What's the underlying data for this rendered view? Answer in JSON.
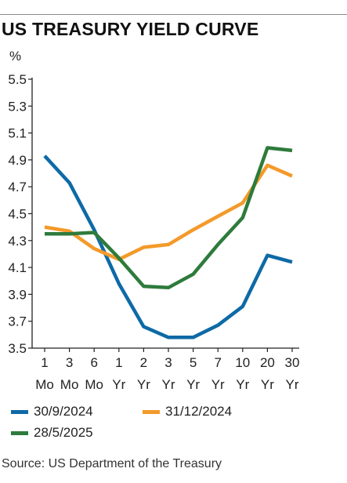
{
  "header": {
    "title": "US TREASURY YIELD CURVE",
    "unit": "%"
  },
  "chart_data": {
    "type": "line",
    "title": "US TREASURY YIELD CURVE",
    "ylabel": "%",
    "xlabel": "",
    "ylim": [
      3.5,
      5.5
    ],
    "yticks": [
      "5.5",
      "5.3",
      "5.1",
      "4.9",
      "4.7",
      "4.5",
      "4.3",
      "4.1",
      "3.9",
      "3.7",
      "3.5"
    ],
    "categories": [
      {
        "top": "1",
        "bottom": "Mo"
      },
      {
        "top": "3",
        "bottom": "Mo"
      },
      {
        "top": "6",
        "bottom": "Mo"
      },
      {
        "top": "1",
        "bottom": "Yr"
      },
      {
        "top": "2",
        "bottom": "Yr"
      },
      {
        "top": "3",
        "bottom": "Yr"
      },
      {
        "top": "5",
        "bottom": "Yr"
      },
      {
        "top": "7",
        "bottom": "Yr"
      },
      {
        "top": "10",
        "bottom": "Yr"
      },
      {
        "top": "20",
        "bottom": "Yr"
      },
      {
        "top": "30",
        "bottom": "Yr"
      }
    ],
    "grid": false,
    "legend_position": "bottom",
    "series": [
      {
        "name": "30/9/2024",
        "color": "#0e6aa6",
        "values": [
          4.93,
          4.73,
          4.38,
          3.98,
          3.66,
          3.58,
          3.58,
          3.67,
          3.81,
          4.19,
          4.14
        ]
      },
      {
        "name": "31/12/2024",
        "color": "#f39a2a",
        "values": [
          4.4,
          4.37,
          4.24,
          4.16,
          4.25,
          4.27,
          4.38,
          4.48,
          4.58,
          4.86,
          4.78
        ]
      },
      {
        "name": "28/5/2025",
        "color": "#2e7b3c",
        "values": [
          4.35,
          4.35,
          4.36,
          4.17,
          3.96,
          3.95,
          4.05,
          4.27,
          4.47,
          4.99,
          4.97
        ]
      }
    ]
  },
  "legend": {
    "items": [
      {
        "label": "30/9/2024",
        "color": "#0e6aa6"
      },
      {
        "label": "31/12/2024",
        "color": "#f39a2a"
      },
      {
        "label": "28/5/2025",
        "color": "#2e7b3c"
      }
    ]
  },
  "footer": {
    "source": "Source: US Department of the Treasury"
  }
}
